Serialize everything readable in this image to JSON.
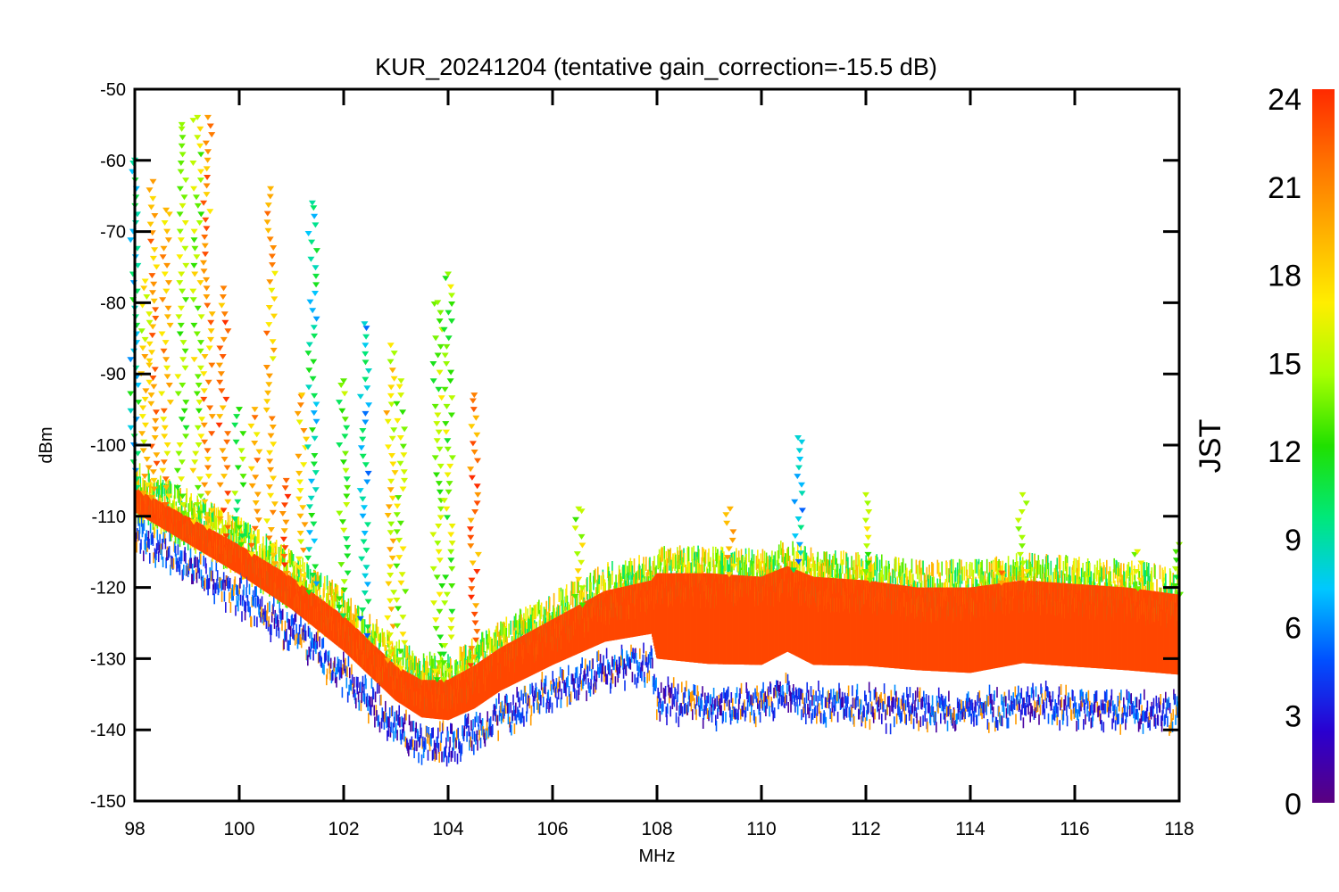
{
  "chart_data": {
    "type": "scatter",
    "title": "KUR_20241204 (tentative gain_correction=-15.5 dB)",
    "xlabel": "MHz",
    "ylabel": "dBm",
    "xlim": [
      98,
      118
    ],
    "ylim": [
      -150,
      -50
    ],
    "x_ticks": [
      98,
      100,
      102,
      104,
      106,
      108,
      110,
      112,
      114,
      116,
      118
    ],
    "y_ticks": [
      -50,
      -60,
      -70,
      -80,
      -90,
      -100,
      -110,
      -120,
      -130,
      -140,
      -150
    ],
    "grid": false,
    "colorbar": {
      "label": "JST",
      "range": [
        0,
        24
      ],
      "ticks": [
        24,
        21,
        18,
        15,
        12,
        9,
        6,
        3,
        0
      ],
      "colormap": [
        "#5a0080",
        "#2a00d0",
        "#0050ff",
        "#00c8ff",
        "#00e87a",
        "#20e000",
        "#a8ff00",
        "#ffee00",
        "#ffb000",
        "#ff7000",
        "#ff2a00"
      ]
    },
    "baseline": {
      "x": [
        98,
        99,
        100,
        101,
        102,
        103,
        103.5,
        104,
        104.5,
        105,
        106,
        107,
        107.9,
        108,
        109,
        110,
        110.5,
        111,
        112,
        113,
        114,
        115,
        116,
        117,
        118
      ],
      "upper": [
        -106,
        -110,
        -114,
        -118.5,
        -124,
        -131,
        -133,
        -133,
        -131,
        -128.5,
        -124.5,
        -120.5,
        -119,
        -118,
        -118,
        -118.5,
        -117,
        -118.5,
        -119,
        -120,
        -120,
        -119,
        -119.5,
        -120,
        -121
      ],
      "lower": [
        -110.5,
        -115,
        -119.5,
        -124.5,
        -130.5,
        -137.5,
        -140,
        -140.5,
        -139,
        -136.5,
        -133,
        -130,
        -129,
        -134,
        -135,
        -135,
        -133,
        -135,
        -135,
        -135.5,
        -136,
        -134.5,
        -135,
        -135.5,
        -136
      ]
    },
    "peaks": [
      {
        "x": 98.0,
        "y": -60,
        "hour": 9
      },
      {
        "x": 98.2,
        "y": -77,
        "hour": 17
      },
      {
        "x": 98.35,
        "y": -63,
        "hour": 20
      },
      {
        "x": 98.6,
        "y": -67,
        "hour": 19
      },
      {
        "x": 98.9,
        "y": -55,
        "hour": 14
      },
      {
        "x": 99.2,
        "y": -54,
        "hour": 15
      },
      {
        "x": 99.4,
        "y": -54,
        "hour": 20
      },
      {
        "x": 99.7,
        "y": -78,
        "hour": 21
      },
      {
        "x": 100.0,
        "y": -95,
        "hour": 12
      },
      {
        "x": 100.3,
        "y": -95,
        "hour": 19
      },
      {
        "x": 100.6,
        "y": -64,
        "hour": 19
      },
      {
        "x": 100.9,
        "y": -105,
        "hour": 22
      },
      {
        "x": 101.2,
        "y": -93,
        "hour": 18
      },
      {
        "x": 101.4,
        "y": -66,
        "hour": 9
      },
      {
        "x": 102.0,
        "y": -91,
        "hour": 13
      },
      {
        "x": 102.4,
        "y": -83,
        "hour": 8
      },
      {
        "x": 102.9,
        "y": -86,
        "hour": 17
      },
      {
        "x": 103.1,
        "y": -91,
        "hour": 15
      },
      {
        "x": 103.8,
        "y": -80,
        "hour": 14
      },
      {
        "x": 104.0,
        "y": -76,
        "hour": 14
      },
      {
        "x": 104.5,
        "y": -93,
        "hour": 21
      },
      {
        "x": 106.5,
        "y": -109,
        "hour": 15
      },
      {
        "x": 109.4,
        "y": -109,
        "hour": 19
      },
      {
        "x": 110.7,
        "y": -99,
        "hour": 8
      },
      {
        "x": 112.0,
        "y": -107,
        "hour": 15
      },
      {
        "x": 114.6,
        "y": -118,
        "hour": 22
      },
      {
        "x": 115.0,
        "y": -107,
        "hour": 15
      },
      {
        "x": 117.2,
        "y": -115,
        "hour": 16
      },
      {
        "x": 118.0,
        "y": -114,
        "hour": 14
      }
    ]
  }
}
